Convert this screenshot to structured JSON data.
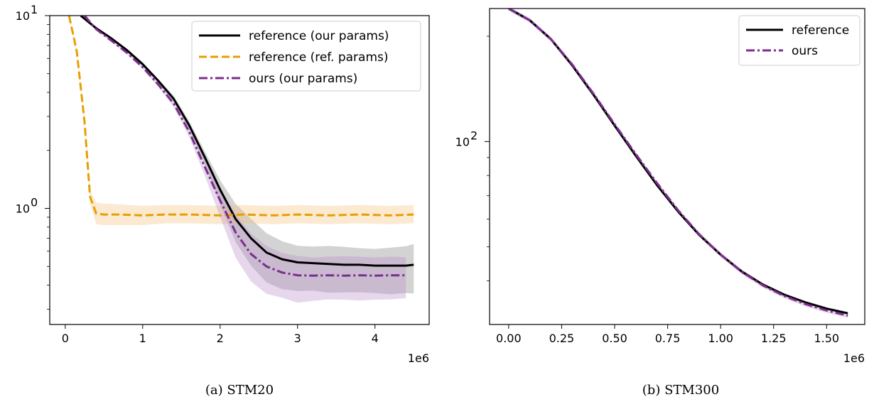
{
  "chart_data": [
    {
      "type": "line",
      "caption": "(a) STM20",
      "x_offset_label": "1e6",
      "y_scale": "log",
      "xlim": [
        -200000,
        4700000
      ],
      "ylim": [
        0.25,
        10
      ],
      "xticks": [
        0,
        1,
        2,
        3,
        4
      ],
      "yticks": [
        {
          "value": 10,
          "base": "10",
          "exp": "1"
        },
        {
          "value": 1,
          "base": "10",
          "exp": "0"
        }
      ],
      "yminor": [
        0.3,
        0.4,
        0.5,
        0.6,
        0.7,
        0.8,
        0.9,
        2,
        3,
        4,
        5,
        6,
        7,
        8,
        9
      ],
      "legend_position": "top-right",
      "series": [
        {
          "name": "reference (our params)",
          "color": "#000000",
          "style": "solid",
          "band_color": "#808080",
          "points": [
            [
              200000,
              10
            ],
            [
              400000,
              8.6
            ],
            [
              600000,
              7.6
            ],
            [
              800000,
              6.6
            ],
            [
              1000000,
              5.6
            ],
            [
              1200000,
              4.6
            ],
            [
              1400000,
              3.7
            ],
            [
              1600000,
              2.7
            ],
            [
              1800000,
              1.85
            ],
            [
              2000000,
              1.25
            ],
            [
              2200000,
              0.88
            ],
            [
              2400000,
              0.7
            ],
            [
              2600000,
              0.59
            ],
            [
              2800000,
              0.545
            ],
            [
              3000000,
              0.525
            ],
            [
              3200000,
              0.52
            ],
            [
              3400000,
              0.515
            ],
            [
              3600000,
              0.51
            ],
            [
              3800000,
              0.51
            ],
            [
              4000000,
              0.505
            ],
            [
              4200000,
              0.505
            ],
            [
              4400000,
              0.505
            ],
            [
              4500000,
              0.51
            ]
          ],
          "band_low": [
            0.98,
            0.985,
            0.985,
            0.98,
            0.98,
            0.98,
            0.97,
            0.95,
            0.92,
            0.84,
            0.76,
            0.72,
            0.7,
            0.7,
            0.71,
            0.72,
            0.71,
            0.72,
            0.72,
            0.72,
            0.71,
            0.72,
            0.71
          ],
          "band_high": [
            1.02,
            1.015,
            1.015,
            1.02,
            1.02,
            1.02,
            1.04,
            1.05,
            1.07,
            1.12,
            1.2,
            1.26,
            1.26,
            1.24,
            1.22,
            1.22,
            1.24,
            1.24,
            1.22,
            1.22,
            1.24,
            1.26,
            1.28
          ]
        },
        {
          "name": "reference (ref. params)",
          "color": "#E69F00",
          "style": "dashed",
          "band_color": "#F4C37A",
          "points": [
            [
              50000,
              10
            ],
            [
              150000,
              6.5
            ],
            [
              250000,
              2.8
            ],
            [
              320000,
              1.15
            ],
            [
              400000,
              0.94
            ],
            [
              500000,
              0.93
            ],
            [
              700000,
              0.93
            ],
            [
              1000000,
              0.92
            ],
            [
              1300000,
              0.93
            ],
            [
              1600000,
              0.93
            ],
            [
              2000000,
              0.92
            ],
            [
              2300000,
              0.93
            ],
            [
              2700000,
              0.92
            ],
            [
              3000000,
              0.93
            ],
            [
              3400000,
              0.92
            ],
            [
              3800000,
              0.93
            ],
            [
              4200000,
              0.92
            ],
            [
              4500000,
              0.93
            ]
          ],
          "band_low": [
            0.98,
            0.97,
            0.96,
            0.92,
            0.88,
            0.88,
            0.88,
            0.89,
            0.9,
            0.9,
            0.9,
            0.9,
            0.9,
            0.9,
            0.9,
            0.9,
            0.9,
            0.9
          ],
          "band_high": [
            1.02,
            1.03,
            1.04,
            1.08,
            1.14,
            1.14,
            1.13,
            1.12,
            1.12,
            1.12,
            1.12,
            1.12,
            1.12,
            1.12,
            1.12,
            1.12,
            1.12,
            1.12
          ]
        },
        {
          "name": "ours (our params)",
          "color": "#7B2D8E",
          "style": "dashdot",
          "band_color": "#B88BC8",
          "points": [
            [
              250000,
              10
            ],
            [
              400000,
              8.5
            ],
            [
              600000,
              7.4
            ],
            [
              800000,
              6.4
            ],
            [
              1000000,
              5.4
            ],
            [
              1200000,
              4.4
            ],
            [
              1400000,
              3.5
            ],
            [
              1600000,
              2.5
            ],
            [
              1800000,
              1.65
            ],
            [
              2000000,
              1.1
            ],
            [
              2200000,
              0.75
            ],
            [
              2400000,
              0.58
            ],
            [
              2600000,
              0.5
            ],
            [
              2800000,
              0.465
            ],
            [
              3000000,
              0.45
            ],
            [
              3200000,
              0.448
            ],
            [
              3400000,
              0.45
            ],
            [
              3600000,
              0.448
            ],
            [
              3800000,
              0.45
            ],
            [
              4000000,
              0.448
            ],
            [
              4200000,
              0.45
            ],
            [
              4400000,
              0.45
            ]
          ],
          "band_low": [
            0.98,
            0.985,
            0.98,
            0.98,
            0.98,
            0.97,
            0.96,
            0.94,
            0.9,
            0.82,
            0.74,
            0.72,
            0.72,
            0.74,
            0.72,
            0.74,
            0.75,
            0.75,
            0.74,
            0.75,
            0.75,
            0.76
          ],
          "band_high": [
            1.02,
            1.015,
            1.02,
            1.02,
            1.02,
            1.03,
            1.04,
            1.06,
            1.1,
            1.16,
            1.24,
            1.28,
            1.28,
            1.26,
            1.26,
            1.24,
            1.25,
            1.26,
            1.25,
            1.24,
            1.25,
            1.24
          ]
        }
      ]
    },
    {
      "type": "line",
      "caption": "(b) STM300",
      "x_offset_label": "1e6",
      "y_scale": "log",
      "xlim": [
        -90000,
        1680000
      ],
      "ylim": [
        30,
        240
      ],
      "xticks": [
        0.0,
        0.25,
        0.5,
        0.75,
        1.0,
        1.25,
        1.5
      ],
      "yticks": [
        {
          "value": 100,
          "base": "10",
          "exp": "2"
        }
      ],
      "yminor": [
        40,
        50,
        60,
        70,
        80,
        90,
        200
      ],
      "legend_position": "top-right",
      "series": [
        {
          "name": "reference",
          "color": "#000000",
          "style": "solid",
          "band_color": "#A0A0A0",
          "points": [
            [
              0,
              240
            ],
            [
              100000,
              222
            ],
            [
              200000,
              196
            ],
            [
              300000,
              165
            ],
            [
              400000,
              136
            ],
            [
              500000,
              111
            ],
            [
              600000,
              91
            ],
            [
              700000,
              75
            ],
            [
              800000,
              63
            ],
            [
              900000,
              54
            ],
            [
              1000000,
              47.5
            ],
            [
              1100000,
              42.5
            ],
            [
              1200000,
              39
            ],
            [
              1300000,
              36.5
            ],
            [
              1400000,
              34.7
            ],
            [
              1500000,
              33.3
            ],
            [
              1600000,
              32.3
            ]
          ],
          "band_low": [
            0.99,
            0.99,
            0.99,
            0.99,
            0.99,
            0.99,
            0.99,
            0.99,
            0.99,
            0.99,
            0.99,
            0.99,
            0.99,
            0.99,
            0.99,
            0.99,
            0.99
          ],
          "band_high": [
            1.01,
            1.01,
            1.01,
            1.01,
            1.01,
            1.01,
            1.01,
            1.01,
            1.01,
            1.01,
            1.01,
            1.01,
            1.01,
            1.01,
            1.01,
            1.01,
            1.01
          ]
        },
        {
          "name": "ours",
          "color": "#7B2D8E",
          "style": "dashdot",
          "band_color": "#B88BC8",
          "points": [
            [
              0,
              240
            ],
            [
              100000,
              222
            ],
            [
              200000,
              196
            ],
            [
              300000,
              166
            ],
            [
              400000,
              137
            ],
            [
              500000,
              112
            ],
            [
              600000,
              92
            ],
            [
              700000,
              76
            ],
            [
              800000,
              63.5
            ],
            [
              900000,
              54.2
            ],
            [
              1000000,
              47.5
            ],
            [
              1100000,
              42.4
            ],
            [
              1200000,
              38.8
            ],
            [
              1300000,
              36.2
            ],
            [
              1400000,
              34.3
            ],
            [
              1500000,
              32.9
            ],
            [
              1600000,
              31.8
            ]
          ],
          "band_low": [
            0.985,
            0.985,
            0.985,
            0.985,
            0.985,
            0.985,
            0.985,
            0.985,
            0.985,
            0.985,
            0.985,
            0.985,
            0.985,
            0.985,
            0.985,
            0.985,
            0.985
          ],
          "band_high": [
            1.015,
            1.015,
            1.015,
            1.015,
            1.015,
            1.015,
            1.015,
            1.015,
            1.015,
            1.015,
            1.015,
            1.015,
            1.015,
            1.015,
            1.015,
            1.015,
            1.015
          ]
        }
      ]
    }
  ]
}
